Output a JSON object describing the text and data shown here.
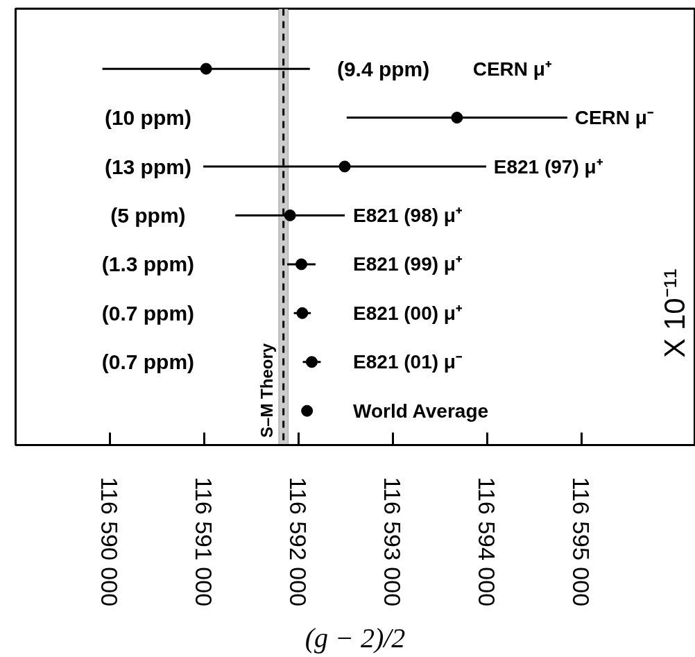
{
  "chart_data": {
    "type": "scatter",
    "orientation": "horizontal",
    "marker": "circle",
    "grid": false,
    "tick_labels": "x",
    "xlabel": "(g − 2)/2",
    "categories": [
      "CERN μ⁺",
      "CERN μ⁻",
      "E821 (97) μ⁺",
      "E821 (98) μ⁺",
      "E821 (99) μ⁺",
      "E821 (00) μ⁺",
      "E821 (01) μ⁻",
      "World Average"
    ],
    "values": [
      116591020,
      116593680,
      116592490,
      116591910,
      116592030,
      116592040,
      116592140,
      116592090
    ],
    "errors": [
      1100,
      1170,
      1500,
      580,
      150,
      90,
      95,
      null
    ],
    "color": "#000000",
    "xlim": [
      116589000,
      116596200
    ],
    "xticks": [
      {
        "value": 116590000,
        "label": "116 590 000"
      },
      {
        "value": 116591000,
        "label": "116 591 000"
      },
      {
        "value": 116592000,
        "label": "116 592 000"
      },
      {
        "value": 116593000,
        "label": "116 593 000"
      },
      {
        "value": 116594000,
        "label": "116 594 000"
      },
      {
        "value": 116595000,
        "label": "116 595 000"
      }
    ],
    "bands": [
      {
        "axis": "x",
        "from": 116591790,
        "to": 116591890,
        "label": "S–M Theory",
        "color": "#cccccc"
      }
    ],
    "ref_lines": [
      {
        "axis": "x",
        "value": 116591840,
        "label": null,
        "color": "#000000",
        "line_style": "dashed"
      }
    ],
    "annotations": [
      "(9.4 ppm)",
      "(10 ppm)",
      "(13 ppm)",
      "(5 ppm)",
      "(1.3 ppm)",
      "(0.7 ppm)",
      "(0.7 ppm)",
      "X 10⁻¹¹"
    ]
  }
}
